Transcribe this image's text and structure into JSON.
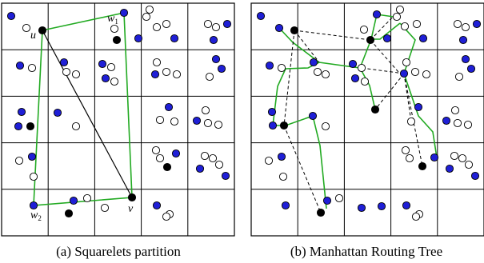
{
  "panels": [
    {
      "id": "a",
      "caption": "(a) Squarelets partition",
      "labels": {
        "u": "u",
        "v": "v",
        "w1": "w",
        "w1_sub": "1",
        "w2": "w",
        "w2_sub": "2"
      }
    },
    {
      "id": "b",
      "caption": "(b) Manhattan Routing Tree"
    }
  ],
  "colors": {
    "blue": "#1f1fd6",
    "black": "#000000",
    "white": "#ffffff",
    "green": "#22aa22"
  }
}
